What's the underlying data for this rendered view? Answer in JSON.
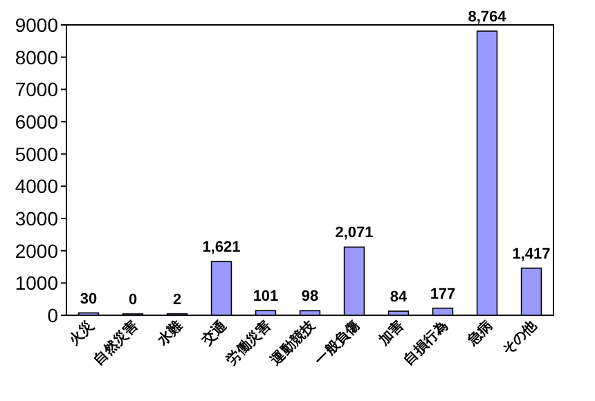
{
  "chart_data": {
    "type": "bar",
    "categories": [
      "火災",
      "自然災害",
      "水難",
      "交通",
      "労働災害",
      "運動競技",
      "一般負傷",
      "加害",
      "自損行為",
      "急病",
      "その他"
    ],
    "values": [
      30,
      0,
      2,
      1621,
      101,
      98,
      2071,
      84,
      177,
      8764,
      1417
    ],
    "value_labels": [
      "30",
      "0",
      "2",
      "1,621",
      "101",
      "98",
      "2,071",
      "84",
      "177",
      "8,764",
      "1,417"
    ],
    "color": "#9999ff",
    "ylim": [
      0,
      9000
    ],
    "yticks": [
      0,
      1000,
      2000,
      3000,
      4000,
      5000,
      6000,
      7000,
      8000,
      9000
    ],
    "grid": false
  }
}
